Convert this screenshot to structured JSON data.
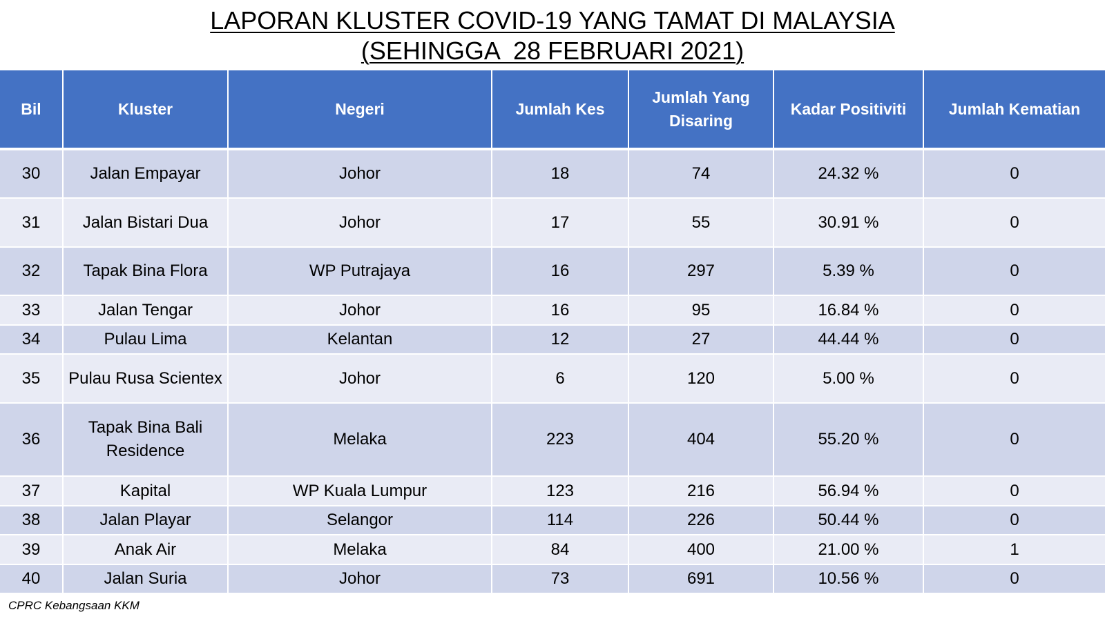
{
  "title": {
    "line1": "LAPORAN KLUSTER COVID-19 YANG TAMAT DI MALAYSIA",
    "line2": "(SEHINGGA  28 FEBRUARI 2021)"
  },
  "table": {
    "headers": {
      "bil": "Bil",
      "kluster": "Kluster",
      "negeri": "Negeri",
      "jumlah_kes": "Jumlah Kes",
      "jumlah_disaring_1": "Jumlah Yang",
      "jumlah_disaring_2": "Disaring",
      "kadar_positiviti": "Kadar Positiviti",
      "jumlah_kematian": "Jumlah Kematian"
    },
    "rows": [
      {
        "bil": "30",
        "kluster": "Jalan Empayar",
        "negeri": "Johor",
        "kes": "18",
        "disaring": "74",
        "positiviti": "24.32 %",
        "kematian": "0"
      },
      {
        "bil": "31",
        "kluster": "Jalan Bistari Dua",
        "negeri": "Johor",
        "kes": "17",
        "disaring": "55",
        "positiviti": "30.91 %",
        "kematian": "0"
      },
      {
        "bil": "32",
        "kluster": "Tapak Bina Flora",
        "negeri": "WP Putrajaya",
        "kes": "16",
        "disaring": "297",
        "positiviti": "5.39 %",
        "kematian": "0"
      },
      {
        "bil": "33",
        "kluster": "Jalan Tengar",
        "negeri": "Johor",
        "kes": "16",
        "disaring": "95",
        "positiviti": "16.84 %",
        "kematian": "0"
      },
      {
        "bil": "34",
        "kluster": "Pulau Lima",
        "negeri": "Kelantan",
        "kes": "12",
        "disaring": "27",
        "positiviti": "44.44 %",
        "kematian": "0"
      },
      {
        "bil": "35",
        "kluster": "Pulau Rusa Scientex",
        "negeri": "Johor",
        "kes": "6",
        "disaring": "120",
        "positiviti": "5.00 %",
        "kematian": "0"
      },
      {
        "bil": "36",
        "kluster_1": "Tapak Bina Bali",
        "kluster_2": "Residence",
        "negeri": "Melaka",
        "kes": "223",
        "disaring": "404",
        "positiviti": "55.20 %",
        "kematian": "0"
      },
      {
        "bil": "37",
        "kluster": "Kapital",
        "negeri": "WP Kuala Lumpur",
        "kes": "123",
        "disaring": "216",
        "positiviti": "56.94 %",
        "kematian": "0"
      },
      {
        "bil": "38",
        "kluster": "Jalan Playar",
        "negeri": "Selangor",
        "kes": "114",
        "disaring": "226",
        "positiviti": "50.44 %",
        "kematian": "0"
      },
      {
        "bil": "39",
        "kluster": "Anak Air",
        "negeri": "Melaka",
        "kes": "84",
        "disaring": "400",
        "positiviti": "21.00 %",
        "kematian": "1"
      },
      {
        "bil": "40",
        "kluster": "Jalan Suria",
        "negeri": "Johor",
        "kes": "73",
        "disaring": "691",
        "positiviti": "10.56 %",
        "kematian": "0"
      }
    ]
  },
  "source": "CPRC Kebangsaan KKM",
  "colors": {
    "header_bg": "#4472C4",
    "row_dark": "#CFD5EA",
    "row_light": "#E9EBF5"
  }
}
